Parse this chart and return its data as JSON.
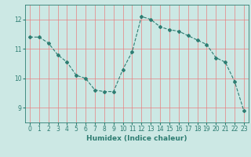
{
  "x": [
    0,
    1,
    2,
    3,
    4,
    5,
    6,
    7,
    8,
    9,
    10,
    11,
    12,
    13,
    14,
    15,
    16,
    17,
    18,
    19,
    20,
    21,
    22,
    23
  ],
  "y": [
    11.4,
    11.4,
    11.2,
    10.8,
    10.55,
    10.1,
    10.0,
    9.6,
    9.55,
    9.55,
    10.3,
    10.9,
    12.1,
    12.0,
    11.75,
    11.65,
    11.6,
    11.45,
    11.3,
    11.15,
    10.7,
    10.55,
    9.9,
    8.9
  ],
  "line_color": "#2e7d72",
  "marker": "D",
  "marker_size": 2.0,
  "bg_color": "#cce8e4",
  "grid_color": "#e88080",
  "plot_bg": "#cce8e4",
  "xlabel": "Humidex (Indice chaleur)",
  "ylim": [
    8.5,
    12.5
  ],
  "xlim": [
    -0.5,
    23.5
  ],
  "yticks": [
    9,
    10,
    11,
    12
  ],
  "xtick_labels": [
    "0",
    "1",
    "2",
    "3",
    "4",
    "5",
    "6",
    "7",
    "8",
    "9",
    "10",
    "11",
    "12",
    "13",
    "14",
    "15",
    "16",
    "17",
    "18",
    "19",
    "20",
    "21",
    "22",
    "23"
  ],
  "label_fontsize": 6.5,
  "tick_fontsize": 5.5
}
